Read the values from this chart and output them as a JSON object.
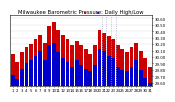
{
  "title": "Milwaukee Barometric Pressure: Daily High/Low",
  "days": [
    1,
    2,
    3,
    4,
    5,
    6,
    7,
    8,
    9,
    10,
    11,
    12,
    13,
    14,
    15,
    16,
    17,
    18,
    19,
    20,
    21,
    22,
    23,
    24,
    25,
    26,
    27,
    28,
    29,
    30,
    31
  ],
  "high": [
    30.05,
    29.92,
    30.08,
    30.15,
    30.2,
    30.28,
    30.35,
    30.22,
    30.48,
    30.55,
    30.42,
    30.35,
    30.28,
    30.18,
    30.25,
    30.18,
    30.12,
    30.05,
    30.18,
    30.42,
    30.38,
    30.32,
    30.28,
    30.18,
    30.12,
    30.08,
    30.15,
    30.22,
    30.1,
    29.98,
    29.85
  ],
  "low": [
    29.72,
    29.65,
    29.82,
    29.9,
    29.95,
    30.02,
    30.1,
    29.95,
    30.18,
    30.22,
    30.08,
    29.98,
    29.92,
    29.85,
    29.95,
    29.88,
    29.82,
    29.78,
    29.88,
    30.12,
    30.1,
    30.02,
    29.98,
    29.85,
    29.8,
    29.78,
    29.85,
    29.95,
    29.8,
    29.68,
    29.6
  ],
  "high_color": "#cc0000",
  "low_color": "#0000cc",
  "bg_color": "#ffffff",
  "ymin": 29.55,
  "ymax": 30.65,
  "yticks": [
    29.6,
    29.7,
    29.8,
    29.9,
    30.0,
    30.1,
    30.2,
    30.3,
    30.4,
    30.5,
    30.6
  ],
  "ytick_labels": [
    "29.60",
    "29.70",
    "29.80",
    "29.90",
    "30.00",
    "30.10",
    "30.20",
    "30.30",
    "30.40",
    "30.50",
    "30.60"
  ],
  "dashed_vlines_x": [
    19.5,
    20.5,
    21.5,
    22.5
  ],
  "title_fontsize": 3.8,
  "tick_fontsize": 2.8,
  "bar_width": 0.42
}
